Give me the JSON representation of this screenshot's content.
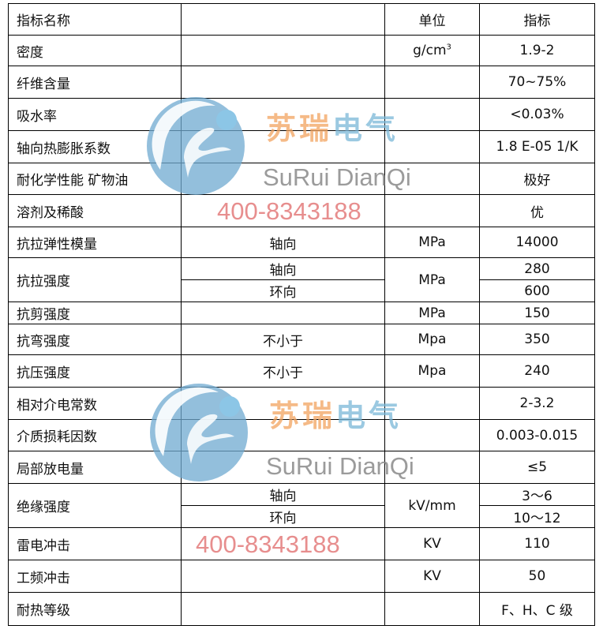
{
  "header": {
    "name": "指标名称",
    "condition": "",
    "unit": "单位",
    "value": "指标"
  },
  "rows": [
    {
      "name": "密度",
      "condition": "",
      "unit": "g/cm",
      "unit_sup": "3",
      "value": "1.9-2"
    },
    {
      "name": "纤维含量",
      "condition": "",
      "unit": "",
      "value": "70~75%"
    },
    {
      "name": "吸水率",
      "condition": "",
      "unit": "",
      "value": "<0.03%"
    },
    {
      "name": "轴向热膨胀系数",
      "condition": "",
      "unit": "",
      "value": "1.8 E-05 1/K"
    },
    {
      "name": "耐化学性能 矿物油",
      "condition": "",
      "unit": "",
      "value": "极好"
    },
    {
      "name": "溶剂及稀酸",
      "condition": "",
      "unit": "",
      "value": "优"
    },
    {
      "name": "抗拉弹性模量",
      "condition": "轴向",
      "unit": "MPa",
      "value": "14000"
    },
    {
      "name": "抗拉强度",
      "unit": "MPa",
      "sub": [
        {
          "condition": "轴向",
          "value": "280"
        },
        {
          "condition": "环向",
          "value": "600"
        }
      ]
    },
    {
      "name": "抗剪强度",
      "condition": "",
      "unit": "MPa",
      "value": "150"
    },
    {
      "name": "抗弯强度",
      "condition": "不小于",
      "unit": "Mpa",
      "value": "350"
    },
    {
      "name": "抗压强度",
      "condition": "不小于",
      "unit": "Mpa",
      "value": "240"
    },
    {
      "name": "相对介电常数",
      "condition": "",
      "unit": "",
      "value": "2-3.2"
    },
    {
      "name": "介质损耗因数",
      "condition": "",
      "unit": "",
      "value": "0.003-0.015"
    },
    {
      "name": "局部放电量",
      "condition": "",
      "unit": "",
      "value": "≤5"
    },
    {
      "name": "绝缘强度",
      "unit": "kV/mm",
      "sub": [
        {
          "condition": "轴向",
          "value": "3～6"
        },
        {
          "condition": "环向",
          "value": "10～12"
        }
      ]
    },
    {
      "name": "雷电冲击",
      "condition": "",
      "unit": "KV",
      "value": "110"
    },
    {
      "name": "工频冲击",
      "condition": "",
      "unit": "KV",
      "value": "50"
    },
    {
      "name": "耐热等级",
      "condition": "",
      "unit": "",
      "value": "F、H、C 级"
    }
  ],
  "watermark": {
    "cn": "苏瑞电气",
    "en": "SuRui DianQi",
    "phone": "400-8343188",
    "logo_color": "#6fa9d0",
    "cn_color_1": "#f2a35f",
    "cn_color_2": "#7ab7d8"
  }
}
